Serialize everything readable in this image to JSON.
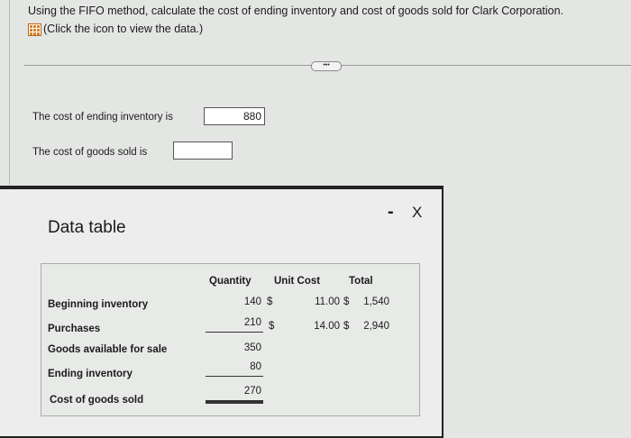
{
  "question": {
    "text": "Using the FIFO method, calculate the cost of ending inventory and cost of goods sold for Clark Corporation.",
    "icon_hint": "(Click the icon to view the data.)",
    "icon": "table-grid-icon",
    "more_label": "•••"
  },
  "answers": {
    "ending_inventory_label": "The cost of ending inventory is",
    "ending_inventory_value": "880",
    "cogs_label": "The cost of goods sold is",
    "cogs_value": ""
  },
  "modal": {
    "title": "Data table",
    "minimize": "-",
    "close": "X"
  },
  "table": {
    "headers": [
      "Quantity",
      "Unit Cost",
      "Total"
    ],
    "rows": [
      {
        "label": "Beginning inventory",
        "quantity": "140",
        "unit_cost": "11.00",
        "total": "1,540",
        "cur1": "$",
        "cur2": "$"
      },
      {
        "label": "Purchases",
        "quantity": "210",
        "unit_cost": "14.00",
        "total": "2,940",
        "cur1": "$",
        "cur2": "$"
      },
      {
        "label": "Goods available for sale",
        "quantity": "350"
      },
      {
        "label": "Ending inventory",
        "quantity": "80"
      },
      {
        "label": "Cost of goods sold",
        "quantity": "270"
      }
    ]
  }
}
